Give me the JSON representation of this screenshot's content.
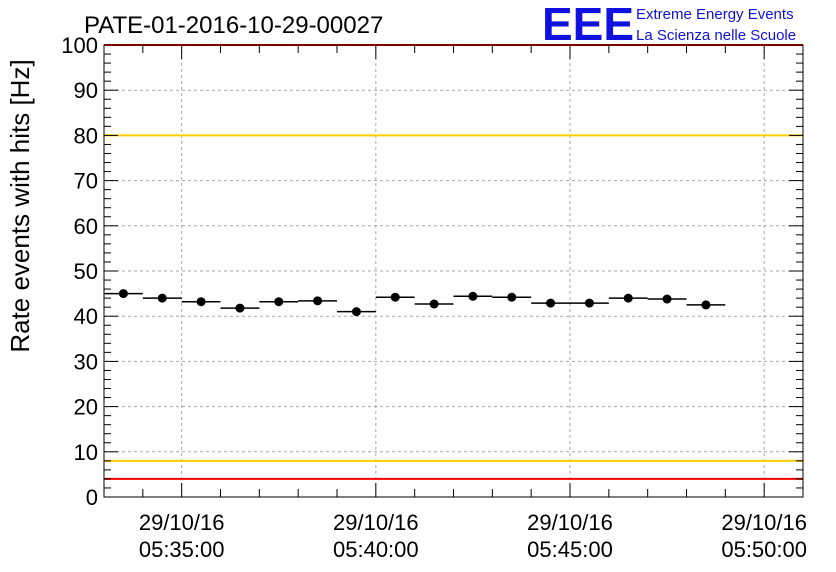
{
  "title": "PATE-01-2016-10-29-00027",
  "logo": {
    "mark": "EEE",
    "line1": "Extreme Energy Events",
    "line2": "La Scienza nelle Scuole",
    "color": "#1010e0"
  },
  "chart_data": {
    "type": "scatter",
    "title": "PATE-01-2016-10-29-00027",
    "xlabel": "",
    "ylabel": "Rate events with hits [Hz]",
    "ylim": [
      0,
      100
    ],
    "yticks": [
      0,
      10,
      20,
      30,
      40,
      50,
      60,
      70,
      80,
      90,
      100
    ],
    "xlim": [
      "05:33:00",
      "05:51:00"
    ],
    "xticks": [
      {
        "date": "29/10/16",
        "time": "05:35:00",
        "t": "05:35:00"
      },
      {
        "date": "29/10/16",
        "time": "05:40:00",
        "t": "05:40:00"
      },
      {
        "date": "29/10/16",
        "time": "05:45:00",
        "t": "05:45:00"
      },
      {
        "date": "29/10/16",
        "time": "05:50:00",
        "t": "05:50:00"
      }
    ],
    "grid": true,
    "series": [
      {
        "values": [
          {
            "t": "05:33:30",
            "y": 45.0
          },
          {
            "t": "05:34:30",
            "y": 44.0
          },
          {
            "t": "05:35:30",
            "y": 43.2
          },
          {
            "t": "05:36:30",
            "y": 41.8
          },
          {
            "t": "05:37:30",
            "y": 43.2
          },
          {
            "t": "05:38:30",
            "y": 43.4
          },
          {
            "t": "05:39:30",
            "y": 41.0
          },
          {
            "t": "05:40:30",
            "y": 44.2
          },
          {
            "t": "05:41:30",
            "y": 42.7
          },
          {
            "t": "05:42:30",
            "y": 44.4
          },
          {
            "t": "05:43:30",
            "y": 44.2
          },
          {
            "t": "05:44:30",
            "y": 42.9
          },
          {
            "t": "05:45:30",
            "y": 42.9
          },
          {
            "t": "05:46:30",
            "y": 44.0
          },
          {
            "t": "05:47:30",
            "y": 43.8
          },
          {
            "t": "05:48:30",
            "y": 42.5
          }
        ],
        "bin_width_minutes": 1,
        "color": "#000000"
      }
    ],
    "reference_lines": [
      {
        "y": 100,
        "color": "#ff0000"
      },
      {
        "y": 80,
        "color": "#ffcc00"
      },
      {
        "y": 8,
        "color": "#ffcc00"
      },
      {
        "y": 4,
        "color": "#ff0000"
      }
    ]
  }
}
